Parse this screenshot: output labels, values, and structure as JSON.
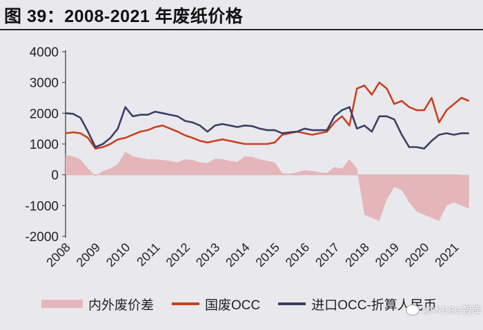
{
  "header": {
    "title": "图 39：2008-2021 年废纸价格"
  },
  "watermark": {
    "text": "水木ESG智库",
    "icon": "wechat-icon"
  },
  "colors": {
    "diff_fill": "#e4b6ba",
    "domestic": "#c9401c",
    "imported": "#3a3e63",
    "background": "#e9e8ed"
  },
  "chart_data": {
    "type": "line",
    "title": "",
    "xlabel": "",
    "ylabel": "",
    "ylim": [
      -2000,
      4000
    ],
    "yticks": [
      "4000",
      "3000",
      "2000",
      "1000",
      "0",
      "-1000",
      "-2000"
    ],
    "xticks": [
      "2008",
      "2009",
      "2010",
      "2011",
      "2012",
      "2013",
      "2014",
      "2015",
      "2016",
      "2017",
      "2018",
      "2019",
      "2020",
      "2021"
    ],
    "grid": false,
    "legend_position": "bottom",
    "x": [
      2008.0,
      2008.25,
      2008.5,
      2008.75,
      2009.0,
      2009.25,
      2009.5,
      2009.75,
      2010.0,
      2010.25,
      2010.5,
      2010.75,
      2011.0,
      2011.25,
      2011.5,
      2011.75,
      2012.0,
      2012.25,
      2012.5,
      2012.75,
      2013.0,
      2013.25,
      2013.5,
      2013.75,
      2014.0,
      2014.25,
      2014.5,
      2014.75,
      2015.0,
      2015.25,
      2015.5,
      2015.75,
      2016.0,
      2016.25,
      2016.5,
      2016.75,
      2017.0,
      2017.25,
      2017.5,
      2017.75,
      2018.0,
      2018.25,
      2018.5,
      2018.75,
      2019.0,
      2019.25,
      2019.5,
      2019.75,
      2020.0,
      2020.25,
      2020.5,
      2020.75,
      2021.0,
      2021.25,
      2021.5
    ],
    "series": [
      {
        "name": "内外废价差",
        "style": "area",
        "values": [
          650,
          600,
          500,
          200,
          -50,
          120,
          200,
          350,
          750,
          600,
          550,
          500,
          500,
          480,
          450,
          400,
          500,
          480,
          400,
          380,
          520,
          500,
          450,
          420,
          600,
          580,
          500,
          450,
          400,
          50,
          30,
          80,
          150,
          120,
          80,
          60,
          250,
          200,
          500,
          200,
          -1300,
          -1400,
          -1500,
          -800,
          -400,
          -500,
          -900,
          -1200,
          -1300,
          -1400,
          -1500,
          -1000,
          -900,
          -1000,
          -1100
        ]
      },
      {
        "name": "国废OCC",
        "style": "line",
        "values": [
          1350,
          1380,
          1350,
          1200,
          850,
          900,
          1000,
          1150,
          1200,
          1300,
          1400,
          1450,
          1550,
          1600,
          1500,
          1400,
          1280,
          1200,
          1100,
          1050,
          1100,
          1150,
          1100,
          1050,
          1000,
          1000,
          1000,
          1000,
          1050,
          1300,
          1350,
          1400,
          1350,
          1300,
          1350,
          1400,
          1700,
          1900,
          1600,
          2800,
          2900,
          2600,
          3000,
          2800,
          2300,
          2400,
          2200,
          2100,
          2100,
          2500,
          1700,
          2100,
          2300,
          2500,
          2400
        ]
      },
      {
        "name": "进口OCC-折算人民币",
        "style": "line",
        "values": [
          2000,
          1980,
          1850,
          1400,
          900,
          1000,
          1200,
          1500,
          2200,
          1900,
          1950,
          1950,
          2050,
          2000,
          1950,
          1900,
          1750,
          1700,
          1600,
          1400,
          1600,
          1650,
          1600,
          1550,
          1600,
          1580,
          1500,
          1450,
          1450,
          1350,
          1380,
          1400,
          1500,
          1450,
          1450,
          1450,
          1900,
          2100,
          2200,
          1500,
          1600,
          1400,
          1900,
          1900,
          1800,
          1300,
          900,
          900,
          850,
          1100,
          1300,
          1350,
          1300,
          1350,
          1350
        ]
      }
    ]
  }
}
